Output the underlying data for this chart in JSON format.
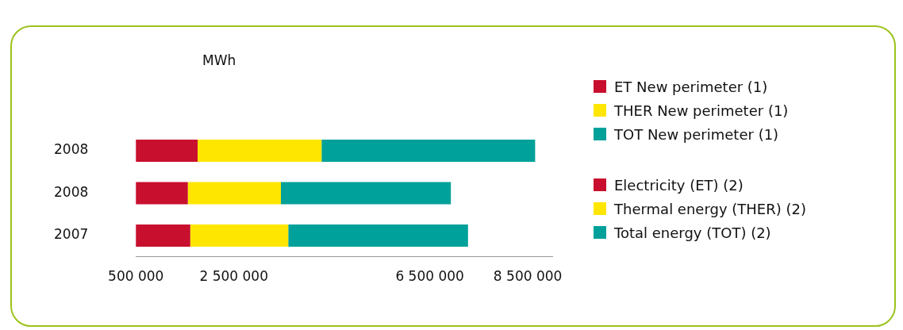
{
  "chart_data": {
    "type": "bar",
    "orientation": "horizontal",
    "stacked": true,
    "xlabel": "MWh",
    "categories": [
      "2008",
      "2008",
      "2007"
    ],
    "series": [
      {
        "name": "ET New perimeter (1)",
        "color": "#c8102e",
        "values": [
          1760000,
          null,
          null
        ]
      },
      {
        "name": "THER New perimeter (1)",
        "color": "#ffe600",
        "values": [
          2530000,
          null,
          null
        ]
      },
      {
        "name": "TOT New perimeter (1)",
        "color": "#00a19a",
        "values": [
          4360000,
          null,
          null
        ]
      },
      {
        "name": "Electricity (ET) (2)",
        "color": "#c8102e",
        "values": [
          null,
          1560000,
          1610000
        ]
      },
      {
        "name": "Thermal energy (THER) (2)",
        "color": "#ffe600",
        "values": [
          null,
          1900000,
          2000000
        ]
      },
      {
        "name": "Total energy (TOT) (2)",
        "color": "#00a19a",
        "values": [
          null,
          3470000,
          3670000
        ]
      }
    ],
    "xlim": [
      500000,
      9000000
    ],
    "xticks": [
      500000,
      2500000,
      6500000,
      8500000
    ],
    "grid": false,
    "legend": "right"
  }
}
